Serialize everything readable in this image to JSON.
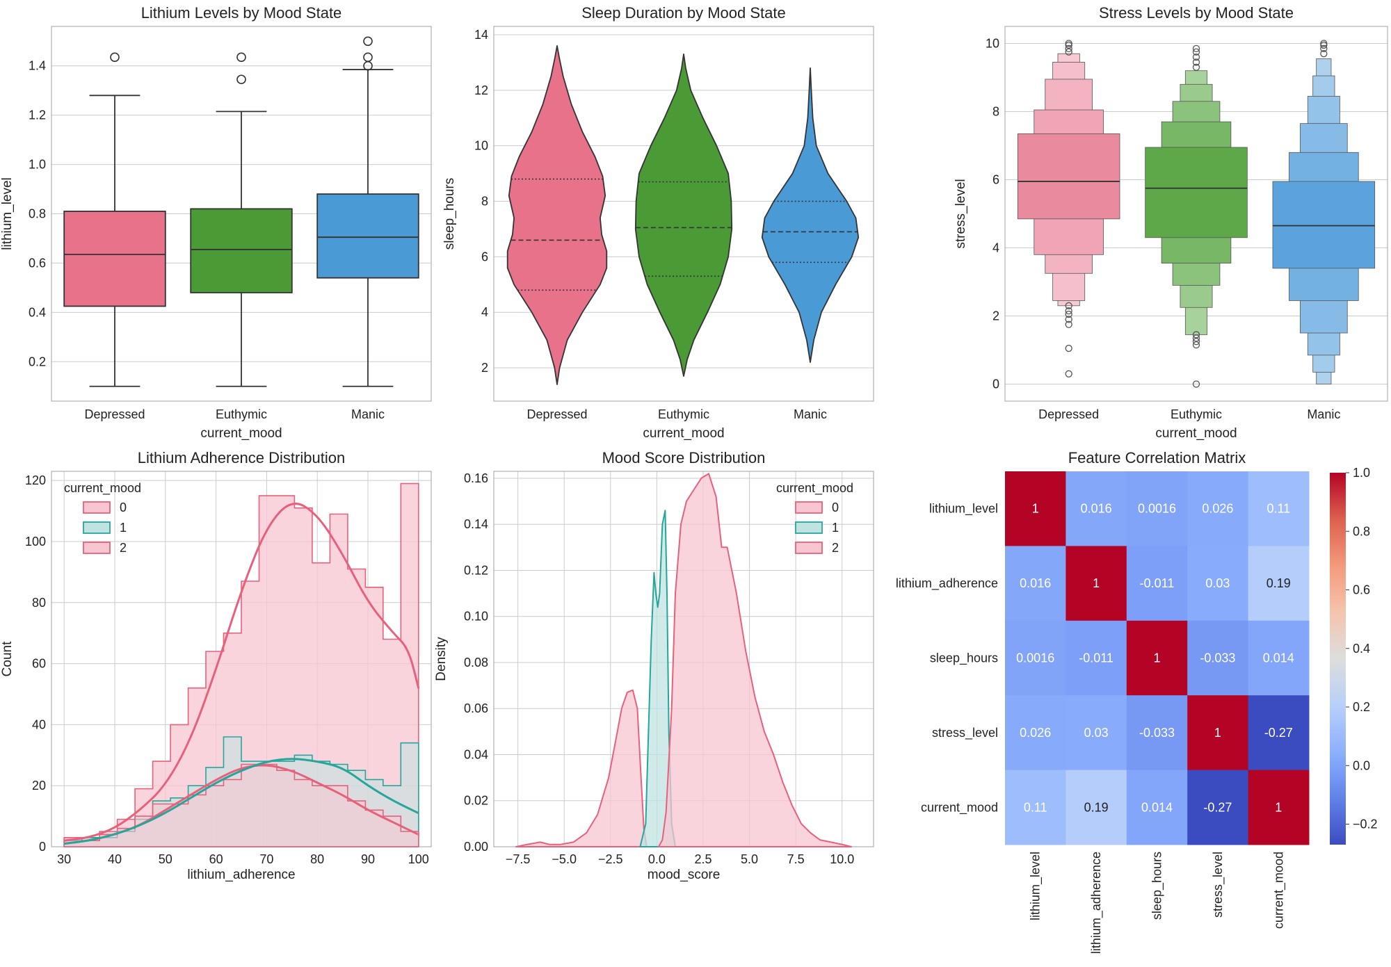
{
  "colors": {
    "depressed": "#e8728a",
    "euthymic": "#4a9a36",
    "manic": "#4a9ad6",
    "hist0": "#e8607a",
    "hist1": "#26a69a",
    "hist2": "#e8607a",
    "fill_pink": "#f7c6d1",
    "fill_teal": "#bfe3e0"
  },
  "chart_data": [
    {
      "id": "lithium_box",
      "type": "box",
      "title": "Lithium Levels by Mood State",
      "xlabel": "current_mood",
      "ylabel": "lithium_level",
      "categories": [
        "Depressed",
        "Euthymic",
        "Manic"
      ],
      "ylim": [
        0.04,
        1.56
      ],
      "yticks": [
        0.2,
        0.4,
        0.6,
        0.8,
        1.0,
        1.2,
        1.4
      ],
      "ytick_labels": [
        "0.2",
        "0.4",
        "0.6",
        "0.8",
        "1.0",
        "1.2",
        "1.4"
      ],
      "boxes": [
        {
          "q1": 0.425,
          "median": 0.635,
          "q3": 0.81,
          "whislo": 0.1,
          "whishi": 1.28,
          "fliers": [
            1.435
          ]
        },
        {
          "q1": 0.48,
          "median": 0.655,
          "q3": 0.82,
          "whislo": 0.1,
          "whishi": 1.215,
          "fliers": [
            1.345,
            1.435
          ]
        },
        {
          "q1": 0.54,
          "median": 0.705,
          "q3": 0.88,
          "whislo": 0.1,
          "whishi": 1.385,
          "fliers": [
            1.4,
            1.435,
            1.5
          ]
        }
      ]
    },
    {
      "id": "sleep_violin",
      "type": "violin",
      "title": "Sleep Duration by Mood State",
      "xlabel": "current_mood",
      "ylabel": "sleep_hours",
      "categories": [
        "Depressed",
        "Euthymic",
        "Manic"
      ],
      "ylim": [
        0.8,
        14.3
      ],
      "yticks": [
        2,
        4,
        6,
        8,
        10,
        12,
        14
      ],
      "ytick_labels": [
        "2",
        "4",
        "6",
        "8",
        "10",
        "12",
        "14"
      ],
      "violins": [
        {
          "ymin": 1.4,
          "ymax": 13.6,
          "profile": [
            [
              1.4,
              0.0
            ],
            [
              2.0,
              0.05
            ],
            [
              3.0,
              0.2
            ],
            [
              4.0,
              0.5
            ],
            [
              5.0,
              0.85
            ],
            [
              5.6,
              0.98
            ],
            [
              6.2,
              0.98
            ],
            [
              6.8,
              0.88
            ],
            [
              7.4,
              0.85
            ],
            [
              8.2,
              0.95
            ],
            [
              8.9,
              0.9
            ],
            [
              9.6,
              0.75
            ],
            [
              10.5,
              0.5
            ],
            [
              11.5,
              0.28
            ],
            [
              12.5,
              0.12
            ],
            [
              13.2,
              0.04
            ],
            [
              13.6,
              0.0
            ]
          ],
          "quartiles": [
            4.8,
            6.6,
            8.8
          ]
        },
        {
          "ymin": 1.7,
          "ymax": 13.3,
          "profile": [
            [
              1.7,
              0.0
            ],
            [
              2.3,
              0.07
            ],
            [
              3.0,
              0.2
            ],
            [
              4.0,
              0.47
            ],
            [
              5.0,
              0.72
            ],
            [
              6.0,
              0.88
            ],
            [
              7.0,
              0.95
            ],
            [
              8.0,
              0.94
            ],
            [
              9.0,
              0.88
            ],
            [
              10.0,
              0.65
            ],
            [
              11.0,
              0.38
            ],
            [
              12.0,
              0.14
            ],
            [
              12.8,
              0.04
            ],
            [
              13.3,
              0.0
            ]
          ],
          "quartiles": [
            5.3,
            7.05,
            8.7
          ]
        },
        {
          "ymin": 2.2,
          "ymax": 12.8,
          "profile": [
            [
              2.2,
              0.0
            ],
            [
              3.0,
              0.07
            ],
            [
              4.0,
              0.22
            ],
            [
              5.0,
              0.5
            ],
            [
              6.0,
              0.82
            ],
            [
              6.7,
              0.95
            ],
            [
              7.4,
              0.9
            ],
            [
              8.0,
              0.72
            ],
            [
              9.0,
              0.35
            ],
            [
              10.0,
              0.12
            ],
            [
              11.0,
              0.05
            ],
            [
              12.0,
              0.02
            ],
            [
              12.8,
              0.0
            ]
          ],
          "quartiles": [
            5.8,
            6.9,
            8.0
          ]
        }
      ]
    },
    {
      "id": "stress_boxen",
      "type": "boxen",
      "title": "Stress Levels by Mood State",
      "xlabel": "current_mood",
      "ylabel": "stress_level",
      "categories": [
        "Depressed",
        "Euthymic",
        "Manic"
      ],
      "ylim": [
        -0.5,
        10.5
      ],
      "yticks": [
        0,
        2,
        4,
        6,
        8,
        10
      ],
      "ytick_labels": [
        "0",
        "2",
        "4",
        "6",
        "8",
        "10"
      ],
      "boxens": [
        {
          "median": 5.95,
          "boxes": [
            [
              4.85,
              7.35
            ],
            [
              3.8,
              8.05
            ],
            [
              3.25,
              8.95
            ],
            [
              2.45,
              9.45
            ],
            [
              2.3,
              9.7
            ]
          ],
          "fliers": [
            0.3,
            1.05,
            1.75,
            1.9,
            2.05,
            2.15,
            2.3,
            9.75,
            9.85,
            9.95,
            10.0
          ]
        },
        {
          "median": 5.75,
          "boxes": [
            [
              4.3,
              6.95
            ],
            [
              3.55,
              7.7
            ],
            [
              2.9,
              8.3
            ],
            [
              2.25,
              8.8
            ],
            [
              1.45,
              9.2
            ]
          ],
          "fliers": [
            0.0,
            1.15,
            1.25,
            1.35,
            1.45,
            9.3,
            9.45,
            9.6,
            9.75,
            9.85
          ]
        },
        {
          "median": 4.65,
          "boxes": [
            [
              3.4,
              5.95
            ],
            [
              2.45,
              6.8
            ],
            [
              1.5,
              7.65
            ],
            [
              0.85,
              8.45
            ],
            [
              0.35,
              9.05
            ],
            [
              0.0,
              9.55
            ]
          ],
          "fliers": [
            9.7,
            9.85,
            9.95,
            10.0
          ]
        }
      ]
    },
    {
      "id": "adherence_hist",
      "type": "histogram",
      "title": "Lithium Adherence Distribution",
      "xlabel": "lithium_adherence",
      "ylabel": "Count",
      "xlim": [
        27.5,
        102.5
      ],
      "ylim": [
        0,
        123
      ],
      "xticks": [
        30,
        40,
        50,
        60,
        70,
        80,
        90,
        100
      ],
      "xtick_labels": [
        "30",
        "40",
        "50",
        "60",
        "70",
        "80",
        "90",
        "100"
      ],
      "yticks": [
        0,
        20,
        40,
        60,
        80,
        100,
        120
      ],
      "ytick_labels": [
        "0",
        "20",
        "40",
        "60",
        "80",
        "100",
        "120"
      ],
      "legend_title": "current_mood",
      "legend_labels": [
        "0",
        "1",
        "2"
      ],
      "bin_edges": [
        30,
        33.5,
        37,
        40.5,
        44,
        47.5,
        51,
        54.5,
        58,
        61.5,
        65,
        68.5,
        72,
        75.5,
        79,
        82.5,
        86,
        89.5,
        93,
        96.5,
        100
      ],
      "series": [
        {
          "name": "0",
          "counts": [
            3,
            2,
            4,
            6,
            10,
            14,
            14,
            17,
            20,
            22,
            27,
            27,
            25,
            22,
            20,
            20,
            15,
            12,
            10,
            5
          ],
          "kde_x": [
            30,
            35,
            40,
            45,
            50,
            55,
            60,
            65,
            70,
            75,
            80,
            85,
            90,
            95,
            100
          ],
          "kde_y": [
            1,
            2,
            4,
            7,
            12,
            17,
            22,
            26,
            27,
            25,
            21,
            17,
            12,
            8,
            4
          ]
        },
        {
          "name": "1",
          "counts": [
            2,
            3,
            3,
            5,
            9,
            15,
            16,
            20,
            26,
            36,
            28,
            28,
            28,
            30,
            28,
            27,
            25,
            22,
            20,
            34
          ],
          "kde_x": [
            30,
            35,
            40,
            45,
            50,
            55,
            60,
            65,
            70,
            75,
            80,
            85,
            90,
            95,
            100
          ],
          "kde_y": [
            1,
            2,
            4,
            7,
            11,
            16,
            21,
            25,
            28,
            29,
            28,
            26,
            20,
            15,
            11
          ]
        },
        {
          "name": "2",
          "counts": [
            3,
            3,
            5,
            9,
            19,
            28,
            40,
            52,
            64,
            70,
            87,
            115,
            115,
            111,
            93,
            109,
            91,
            85,
            68,
            119
          ],
          "kde_x": [
            30,
            35,
            40,
            45,
            50,
            55,
            60,
            65,
            70,
            75,
            80,
            85,
            90,
            95,
            98,
            100
          ],
          "kde_y": [
            2,
            3,
            6,
            12,
            20,
            35,
            58,
            84,
            105,
            114,
            109,
            96,
            80,
            70,
            65,
            52
          ]
        }
      ]
    },
    {
      "id": "mood_kde",
      "type": "area",
      "title": "Mood Score Distribution",
      "xlabel": "mood_score",
      "ylabel": "Density",
      "xlim": [
        -8.8,
        11.7
      ],
      "ylim": [
        0,
        0.163
      ],
      "xticks": [
        -7.5,
        -5.0,
        -2.5,
        0.0,
        2.5,
        5.0,
        7.5,
        10.0
      ],
      "xtick_labels": [
        "−7.5",
        "−5.0",
        "−2.5",
        "0.0",
        "2.5",
        "5.0",
        "7.5",
        "10.0"
      ],
      "yticks": [
        0,
        0.02,
        0.04,
        0.06,
        0.08,
        0.1,
        0.12,
        0.14,
        0.16
      ],
      "ytick_labels": [
        "0.00",
        "0.02",
        "0.04",
        "0.06",
        "0.08",
        "0.10",
        "0.12",
        "0.14",
        "0.16"
      ],
      "legend_title": "current_mood",
      "legend_labels": [
        "0",
        "1",
        "2"
      ],
      "series": [
        {
          "name": "0",
          "x": [
            -7.6,
            -7.0,
            -6.3,
            -5.8,
            -5.2,
            -4.5,
            -3.8,
            -3.2,
            -2.6,
            -2.2,
            -1.9,
            -1.6,
            -1.3,
            -1.05,
            -0.85,
            -0.7,
            -0.55
          ],
          "y": [
            0.0,
            0.001,
            0.002,
            0.001,
            0.001,
            0.002,
            0.006,
            0.014,
            0.03,
            0.047,
            0.06,
            0.067,
            0.068,
            0.06,
            0.03,
            0.008,
            0.0
          ]
        },
        {
          "name": "1",
          "x": [
            -0.9,
            -0.6,
            -0.3,
            -0.15,
            -0.05,
            0.05,
            0.15,
            0.3,
            0.45,
            0.55,
            0.65,
            0.8,
            1.0
          ],
          "y": [
            0.0,
            0.01,
            0.09,
            0.119,
            0.11,
            0.104,
            0.11,
            0.14,
            0.146,
            0.11,
            0.05,
            0.01,
            0.0
          ]
        },
        {
          "name": "2",
          "x": [
            0.1,
            0.3,
            0.5,
            0.8,
            1.0,
            1.3,
            1.6,
            2.0,
            2.4,
            2.8,
            3.2,
            3.5,
            3.8,
            4.3,
            4.8,
            5.3,
            5.8,
            6.3,
            6.8,
            7.3,
            7.8,
            8.3,
            8.8,
            9.4,
            10.0,
            10.5
          ],
          "y": [
            0.0,
            0.003,
            0.015,
            0.06,
            0.11,
            0.14,
            0.15,
            0.155,
            0.16,
            0.162,
            0.152,
            0.13,
            0.13,
            0.11,
            0.085,
            0.065,
            0.05,
            0.04,
            0.028,
            0.018,
            0.01,
            0.006,
            0.003,
            0.002,
            0.001,
            0.0
          ]
        }
      ]
    },
    {
      "id": "corr_heatmap",
      "type": "heatmap",
      "title": "Feature Correlation Matrix",
      "labels": [
        "lithium_level",
        "lithium_adherence",
        "sleep_hours",
        "stress_level",
        "current_mood"
      ],
      "matrix": [
        [
          1,
          0.016,
          0.0016,
          0.026,
          0.11
        ],
        [
          0.016,
          1,
          -0.011,
          0.03,
          0.19
        ],
        [
          0.0016,
          -0.011,
          1,
          -0.033,
          0.014
        ],
        [
          0.026,
          0.03,
          -0.033,
          1,
          -0.27
        ],
        [
          0.11,
          0.19,
          0.014,
          -0.27,
          1
        ]
      ],
      "cell_labels": [
        [
          "1",
          "0.016",
          "0.0016",
          "0.026",
          "0.11"
        ],
        [
          "0.016",
          "1",
          "-0.011",
          "0.03",
          "0.19"
        ],
        [
          "0.0016",
          "-0.011",
          "1",
          "-0.033",
          "0.014"
        ],
        [
          "0.026",
          "0.03",
          "-0.033",
          "1",
          "-0.27"
        ],
        [
          "0.11",
          "0.19",
          "0.014",
          "-0.27",
          "1"
        ]
      ],
      "vmin": -0.27,
      "vmax": 1.0,
      "colorbar_ticks": [
        -0.2,
        0.0,
        0.2,
        0.4,
        0.6,
        0.8,
        1.0
      ],
      "colorbar_tick_labels": [
        "−0.2",
        "0.0",
        "0.2",
        "0.4",
        "0.6",
        "0.8",
        "1.0"
      ],
      "colormap": "coolwarm"
    }
  ]
}
